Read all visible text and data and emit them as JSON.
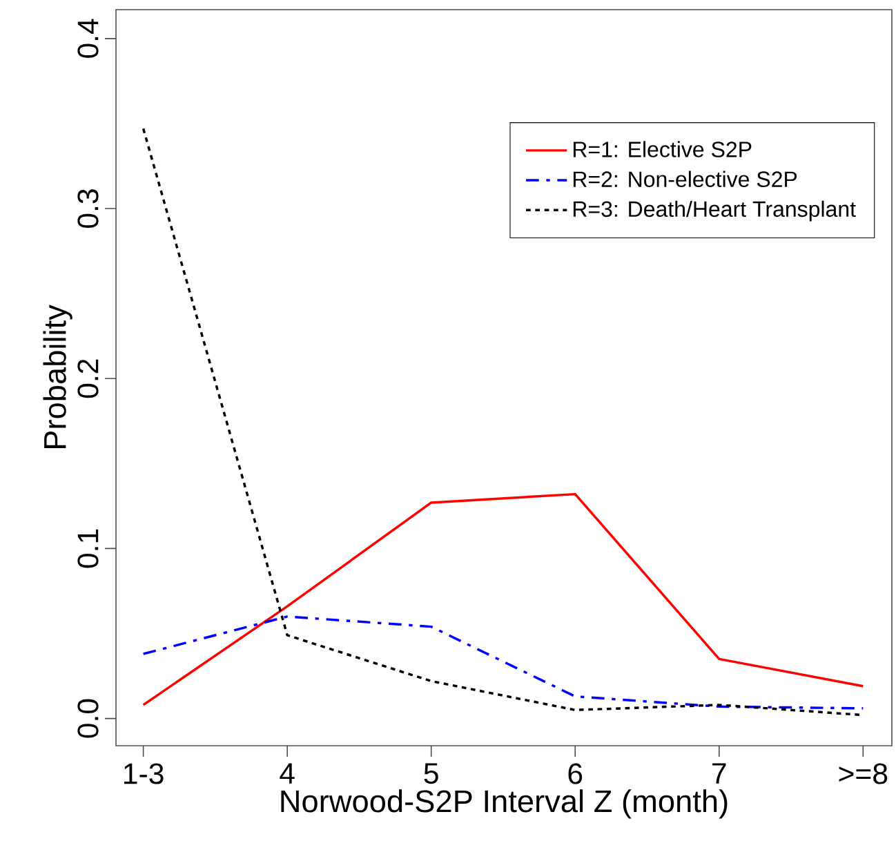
{
  "chart_data": {
    "type": "line",
    "xlabel": "Norwood-S2P Interval Z (month)",
    "ylabel": "Probability",
    "categories": [
      "1-3",
      "4",
      "5",
      "6",
      "7",
      ">=8"
    ],
    "series": [
      {
        "name": "R=1: Elective S2P",
        "color": "#ff0000",
        "line_style": "solid",
        "values": [
          0.008,
          0.066,
          0.127,
          0.132,
          0.035,
          0.019
        ]
      },
      {
        "name": "R=2: Non-elective S2P",
        "color": "#0000ff",
        "line_style": "dashdot",
        "values": [
          0.038,
          0.06,
          0.054,
          0.013,
          0.007,
          0.006
        ]
      },
      {
        "name": "R=3: Death/Heart Transplant",
        "color": "#000000",
        "line_style": "dotted",
        "values": [
          0.347,
          0.049,
          0.022,
          0.005,
          0.008,
          0.002
        ]
      }
    ],
    "ylim": [
      -0.016,
      0.417
    ],
    "yticks": [
      {
        "value": 0,
        "label": "0.0"
      },
      0.1,
      0.2,
      0.3,
      0.4
    ],
    "legend": "top right",
    "grid": false,
    "marker": "none"
  }
}
